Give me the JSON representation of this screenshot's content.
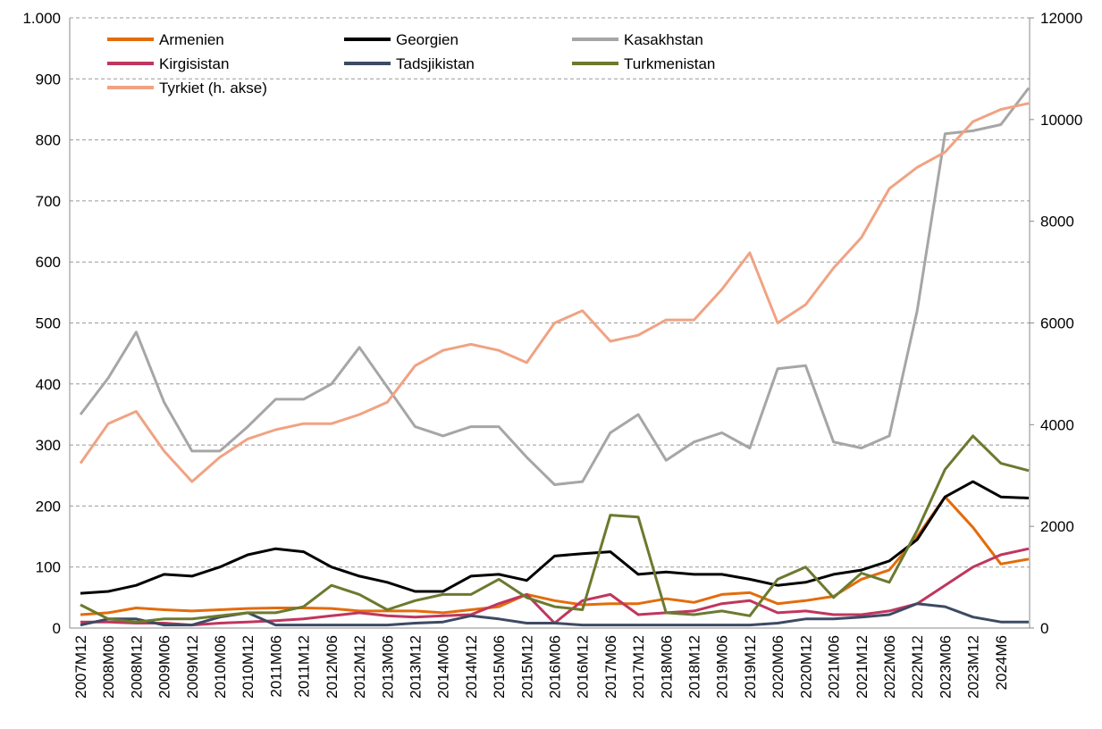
{
  "chart_data": {
    "type": "line",
    "categories": [
      "2007M12",
      "2008M06",
      "2008M12",
      "2009M06",
      "2009M12",
      "2010M06",
      "2010M12",
      "2011M06",
      "2011M12",
      "2012M06",
      "2012M12",
      "2013M06",
      "2013M12",
      "2014M06",
      "2014M12",
      "2015M06",
      "2015M12",
      "2016M06",
      "2016M12",
      "2017M06",
      "2017M12",
      "2018M06",
      "2018M12",
      "2019M06",
      "2019M12",
      "2020M06",
      "2020M12",
      "2021M06",
      "2021M12",
      "2022M06",
      "2022M12",
      "2023M06",
      "2023M12",
      "2024M6",
      null
    ],
    "series": [
      {
        "name": "Armenien",
        "color": "#e36c0a",
        "values": [
          22,
          25,
          33,
          30,
          28,
          30,
          32,
          33,
          33,
          32,
          28,
          28,
          28,
          25,
          30,
          35,
          55,
          45,
          38,
          40,
          40,
          48,
          42,
          55,
          58,
          40,
          45,
          52,
          80,
          95,
          150,
          215,
          165,
          105,
          113
        ]
      },
      {
        "name": "Georgien",
        "color": "#000000",
        "values": [
          57,
          60,
          70,
          88,
          85,
          100,
          120,
          130,
          125,
          100,
          85,
          75,
          60,
          60,
          85,
          88,
          78,
          118,
          122,
          125,
          88,
          92,
          88,
          88,
          80,
          70,
          75,
          88,
          95,
          110,
          145,
          215,
          240,
          215,
          213
        ]
      },
      {
        "name": "Kasakhstan",
        "color": "#a6a6a6",
        "values": [
          350,
          410,
          485,
          370,
          290,
          290,
          330,
          375,
          375,
          400,
          460,
          395,
          330,
          315,
          330,
          330,
          280,
          235,
          240,
          320,
          350,
          275,
          305,
          320,
          295,
          425,
          430,
          305,
          295,
          315,
          520,
          810,
          815,
          825,
          885
        ]
      },
      {
        "name": "Kirgisistan",
        "color": "#c0365e",
        "values": [
          10,
          10,
          8,
          8,
          5,
          8,
          10,
          12,
          15,
          20,
          25,
          20,
          18,
          20,
          22,
          40,
          55,
          8,
          45,
          55,
          22,
          25,
          28,
          40,
          45,
          25,
          28,
          22,
          22,
          28,
          40,
          70,
          100,
          120,
          130
        ]
      },
      {
        "name": "Tadsjikistan",
        "color": "#3e4a64",
        "values": [
          5,
          15,
          15,
          5,
          5,
          18,
          25,
          5,
          5,
          5,
          5,
          5,
          8,
          10,
          20,
          15,
          8,
          8,
          5,
          5,
          5,
          5,
          5,
          5,
          5,
          8,
          15,
          15,
          18,
          22,
          40,
          35,
          18,
          10,
          10
        ]
      },
      {
        "name": "Turkmenistan",
        "color": "#6b7a2f",
        "values": [
          38,
          15,
          10,
          15,
          15,
          20,
          25,
          25,
          35,
          70,
          55,
          30,
          45,
          55,
          55,
          80,
          50,
          35,
          30,
          185,
          182,
          25,
          22,
          28,
          20,
          80,
          100,
          50,
          90,
          75,
          160,
          260,
          315,
          270,
          258
        ]
      },
      {
        "name": "Tyrkiet (h. akse)",
        "color": "#f0a383",
        "axis": "y2",
        "values": [
          3240,
          4020,
          4260,
          3480,
          2880,
          3360,
          3720,
          3900,
          4020,
          4020,
          4200,
          4440,
          5160,
          5460,
          5580,
          5460,
          5220,
          6000,
          6240,
          5640,
          5760,
          6060,
          6060,
          6660,
          7380,
          6000,
          6360,
          7080,
          7680,
          8640,
          9060,
          9360,
          9960,
          10200,
          10320
        ]
      }
    ],
    "ylim": [
      0,
      1000
    ],
    "yticks": [
      0,
      100,
      200,
      300,
      400,
      500,
      600,
      700,
      800,
      900,
      {
        "value": 1000,
        "label": "1.000"
      }
    ],
    "y2lim": [
      0,
      12000
    ],
    "y2ticks": [
      0,
      2000,
      4000,
      6000,
      8000,
      10000,
      12000
    ],
    "grid": true,
    "legend": "top-left"
  }
}
